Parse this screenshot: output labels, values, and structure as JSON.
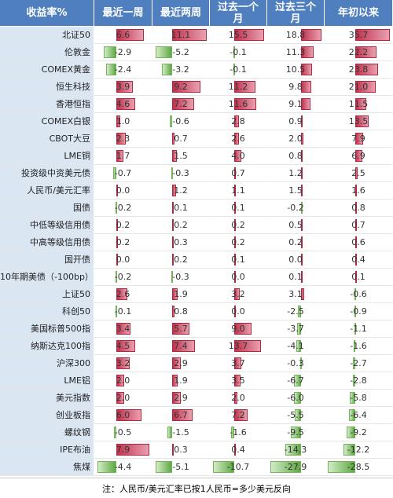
{
  "table": {
    "header": [
      "收益率%",
      "最近一周",
      "最近两周",
      "过去一个月",
      "过去三个月",
      "年初以来"
    ],
    "rows": [
      [
        "北证50",
        "6.6",
        "11.1",
        "15.5",
        "18.8",
        "35.7"
      ],
      [
        "伦敦金",
        "-2.9",
        "-5.2",
        "-0.1",
        "11.3",
        "22.2"
      ],
      [
        "COMEX黄金",
        "-2.4",
        "-3.2",
        "-0.1",
        "10.5",
        "23.8"
      ],
      [
        "恒生科技",
        "3.9",
        "9.2",
        "11.2",
        "9.8",
        "21.0"
      ],
      [
        "香港恒指",
        "4.6",
        "7.2",
        "11.6",
        "9.1",
        "11.5"
      ],
      [
        "COMEX白银",
        "1.0",
        "-0.6",
        "2.8",
        "0.9",
        "13.5"
      ],
      [
        "CBOT大豆",
        "2.3",
        "0.7",
        "2.6",
        "2.0",
        "7.9"
      ],
      [
        "LME铜",
        "1.7",
        "1.5",
        "4.0",
        "0.8",
        "6.9"
      ],
      [
        "投资级中资美元债",
        "-0.7",
        "-0.3",
        "0.7",
        "1.2",
        "2.5"
      ],
      [
        "人民币/美元汇率",
        "0.0",
        "1.2",
        "1.1",
        "1.5",
        "1.6"
      ],
      [
        "国债",
        "-0.2",
        "0.1",
        "0.1",
        "-0.2",
        "0.8"
      ],
      [
        "中低等级信用债",
        "0.2",
        "0.2",
        "0.2",
        "0.5",
        "0.7"
      ],
      [
        "中高等级信用债",
        "0.2",
        "0.3",
        "0.2",
        "0.2",
        "0.6"
      ],
      [
        "国开债",
        "0.0",
        "0.2",
        "0.1",
        "0.0",
        "0.4"
      ],
      [
        "10年期美债（-100bp）",
        "-0.2",
        "-0.3",
        "0.0",
        "0.1",
        "0.1"
      ],
      [
        "上证50",
        "2.6",
        "1.9",
        "3.2",
        "3.1",
        "-0.6"
      ],
      [
        "科创50",
        "-0.1",
        "0.8",
        "0.0",
        "-2.5",
        "-0.9"
      ],
      [
        "美国标普500指",
        "3.4",
        "5.7",
        "9.0",
        "-3.7",
        "-1.1"
      ],
      [
        "纳斯达克100指",
        "4.5",
        "7.4",
        "13.7",
        "-4.1",
        "-1.6"
      ],
      [
        "沪深300",
        "3.2",
        "2.9",
        "3.7",
        "-0.3",
        "-2.7"
      ],
      [
        "LME铝",
        "2.0",
        "1.9",
        "3.5",
        "-6.7",
        "-2.8"
      ],
      [
        "美元指数",
        "2.0",
        "2.9",
        "2.0",
        "-6.0",
        "-5.8"
      ],
      [
        "创业板指",
        "6.0",
        "6.7",
        "7.2",
        "-5.5",
        "-6.4"
      ],
      [
        "螺纹钢",
        "-0.5",
        "-1.5",
        "-1.6",
        "-9.5",
        "-9.2"
      ],
      [
        "IPE布油",
        "7.9",
        "0.3",
        "0.4",
        "-14.3",
        "-12.2"
      ],
      [
        "焦煤",
        "-4.4",
        "-5.1",
        "-10.7",
        "-27.9",
        "-28.5"
      ]
    ],
    "note": "注：人民币/美元汇率已按1人民币=多少美元反向"
  }
}
